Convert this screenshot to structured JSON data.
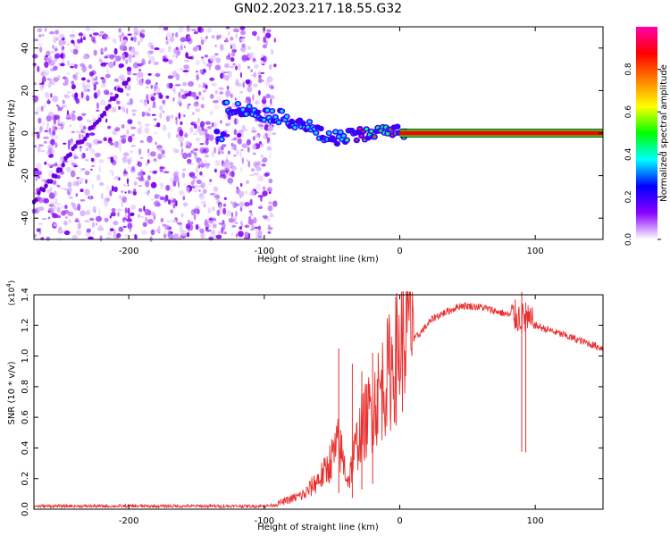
{
  "page_title": "GN02.2023.217.18.55.G32",
  "colors": {
    "signal_line": "#e8302f",
    "axis": "#000000",
    "colorbar_stops": [
      "#ffffff",
      "#8800ff",
      "#0000ff",
      "#00ffff",
      "#00ff00",
      "#ffff00",
      "#ff8000",
      "#ff0000",
      "#ff00aa"
    ]
  },
  "chart_data": [
    {
      "type": "heatmap",
      "title": "GN02.2023.217.18.55.G32",
      "xlabel": "Height of straight line (km)",
      "ylabel": "Frequency (Hz)",
      "xlim": [
        -270,
        150
      ],
      "ylim": [
        -50,
        50
      ],
      "x_ticks": [
        -200,
        -100,
        0,
        100
      ],
      "y_ticks": [
        -40,
        -20,
        0,
        20,
        40
      ],
      "colorbar": {
        "label": "Normalized spectral amplitude",
        "range": [
          0,
          1
        ],
        "ticks": [
          "0.0",
          "0.2",
          "0.4",
          "0.6",
          "0.8"
        ]
      },
      "ridge": {
        "description_points": [
          {
            "x": -130,
            "y": 13
          },
          {
            "x": -110,
            "y": 10
          },
          {
            "x": -90,
            "y": 8
          },
          {
            "x": -70,
            "y": 4
          },
          {
            "x": -55,
            "y": -2
          },
          {
            "x": -40,
            "y": -2
          },
          {
            "x": -20,
            "y": 0
          },
          {
            "x": 0,
            "y": 1
          },
          {
            "x": 150,
            "y": 0
          }
        ],
        "diagonal_streak": [
          {
            "x": -270,
            "y": -32
          },
          {
            "x": -200,
            "y": 25
          }
        ]
      }
    },
    {
      "type": "line",
      "xlabel": "Height of straight line (km)",
      "ylabel": "SNR (10 * v/v)",
      "y_scale_label": "(x10",
      "y_scale_exp": "4",
      "y_scale_close": ")",
      "xlim": [
        -270,
        150
      ],
      "ylim": [
        0,
        1.4
      ],
      "x_ticks": [
        -200,
        -100,
        0,
        100
      ],
      "y_ticks": [
        "0.0",
        "0.2",
        "0.4",
        "0.6",
        "0.8",
        "1.0",
        "1.2",
        "1.4"
      ],
      "series": [
        {
          "envelope": [
            {
              "x": -270,
              "y": 0.02
            },
            {
              "x": -100,
              "y": 0.02
            },
            {
              "x": -90,
              "y": 0.03
            },
            {
              "x": -70,
              "y": 0.08
            },
            {
              "x": -55,
              "y": 0.2
            },
            {
              "x": -45,
              "y": 0.35
            },
            {
              "x": -38,
              "y": 0.15
            },
            {
              "x": -30,
              "y": 0.4
            },
            {
              "x": -20,
              "y": 0.55
            },
            {
              "x": -10,
              "y": 0.7
            },
            {
              "x": 0,
              "y": 0.85
            },
            {
              "x": 10,
              "y": 1.1
            },
            {
              "x": 25,
              "y": 1.25
            },
            {
              "x": 45,
              "y": 1.33
            },
            {
              "x": 60,
              "y": 1.32
            },
            {
              "x": 80,
              "y": 1.27
            },
            {
              "x": 90,
              "y": 1.25
            },
            {
              "x": 100,
              "y": 1.2
            },
            {
              "x": 120,
              "y": 1.14
            },
            {
              "x": 150,
              "y": 1.05
            }
          ],
          "spikes": [
            {
              "x": -45,
              "y": 1.05
            },
            {
              "x": -35,
              "y": 0.95
            },
            {
              "x": -28,
              "y": 0.9
            },
            {
              "x": -20,
              "y": 1.02
            },
            {
              "x": 90,
              "y": 1.42
            },
            {
              "x": 93,
              "y": 1.35
            }
          ]
        }
      ]
    }
  ]
}
